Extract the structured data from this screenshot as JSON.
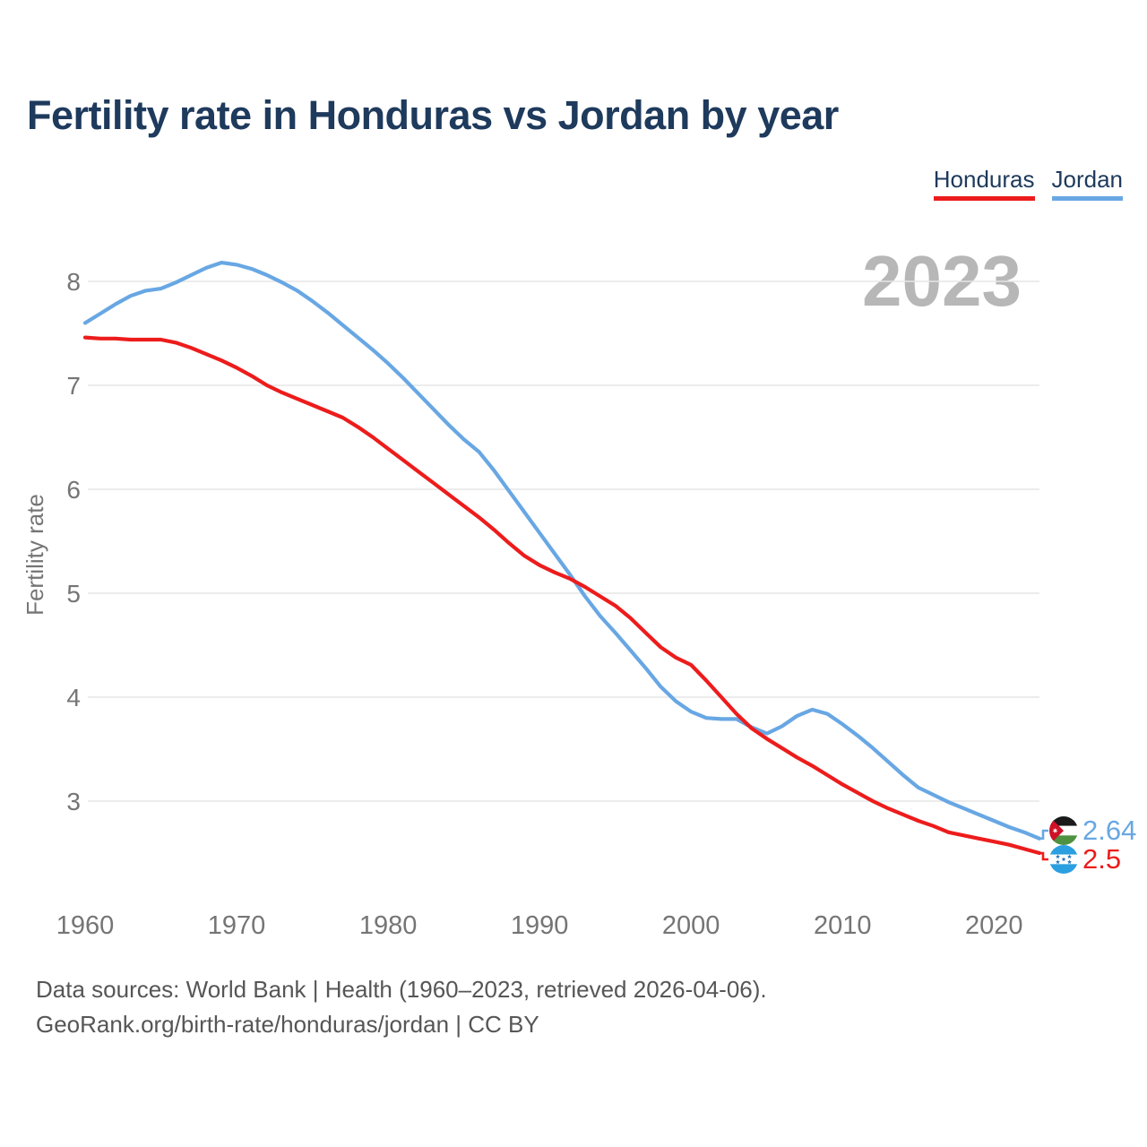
{
  "header": {
    "title": "Fertility rate in Honduras vs Jordan by year"
  },
  "legend": {
    "items": [
      {
        "label": "Honduras",
        "color": "#ed1c1c"
      },
      {
        "label": "Jordan",
        "color": "#68a7e3"
      }
    ]
  },
  "watermark": "2023",
  "chart_data": {
    "type": "line",
    "title": "Fertility rate in Honduras vs Jordan by year",
    "xlabel": "",
    "ylabel": "Fertility rate",
    "grid": "horizontal-only",
    "legend_position": "top-right",
    "xlim": [
      1960,
      2023
    ],
    "ylim": [
      2.4,
      8.45
    ],
    "x_ticks": [
      1960,
      1970,
      1980,
      1990,
      2000,
      2010,
      2020
    ],
    "y_ticks": [
      8,
      7,
      6,
      5,
      4,
      3
    ],
    "x": [
      1960,
      1961,
      1962,
      1963,
      1964,
      1965,
      1966,
      1967,
      1968,
      1969,
      1970,
      1971,
      1972,
      1973,
      1974,
      1975,
      1976,
      1977,
      1978,
      1979,
      1980,
      1981,
      1982,
      1983,
      1984,
      1985,
      1986,
      1987,
      1988,
      1989,
      1990,
      1991,
      1992,
      1993,
      1994,
      1995,
      1996,
      1997,
      1998,
      1999,
      2000,
      2001,
      2002,
      2003,
      2004,
      2005,
      2006,
      2007,
      2008,
      2009,
      2010,
      2011,
      2012,
      2013,
      2014,
      2015,
      2016,
      2017,
      2018,
      2019,
      2020,
      2021,
      2022,
      2023
    ],
    "series": [
      {
        "name": "Jordan",
        "color": "#68a7e3",
        "end_label": "2.64",
        "flag_icon": "jordan-flag-icon",
        "values": [
          7.6,
          7.69,
          7.78,
          7.86,
          7.91,
          7.93,
          7.99,
          8.06,
          8.13,
          8.18,
          8.16,
          8.12,
          8.06,
          7.99,
          7.91,
          7.81,
          7.7,
          7.58,
          7.46,
          7.34,
          7.21,
          7.07,
          6.92,
          6.77,
          6.62,
          6.48,
          6.36,
          6.18,
          5.98,
          5.78,
          5.58,
          5.38,
          5.18,
          4.97,
          4.78,
          4.62,
          4.45,
          4.28,
          4.1,
          3.96,
          3.86,
          3.8,
          3.79,
          3.79,
          3.71,
          3.65,
          3.72,
          3.82,
          3.88,
          3.84,
          3.74,
          3.63,
          3.51,
          3.38,
          3.25,
          3.13,
          3.06,
          2.99,
          2.93,
          2.87,
          2.81,
          2.75,
          2.7,
          2.64
        ]
      },
      {
        "name": "Honduras",
        "color": "#ed1c1c",
        "end_label": "2.5",
        "flag_icon": "honduras-flag-icon",
        "values": [
          7.46,
          7.45,
          7.45,
          7.44,
          7.44,
          7.44,
          7.41,
          7.36,
          7.3,
          7.24,
          7.17,
          7.09,
          7.0,
          6.93,
          6.87,
          6.81,
          6.75,
          6.69,
          6.6,
          6.5,
          6.39,
          6.28,
          6.17,
          6.06,
          5.95,
          5.84,
          5.73,
          5.61,
          5.48,
          5.36,
          5.27,
          5.2,
          5.14,
          5.06,
          4.97,
          4.88,
          4.76,
          4.62,
          4.48,
          4.38,
          4.31,
          4.16,
          4.0,
          3.84,
          3.7,
          3.6,
          3.51,
          3.42,
          3.34,
          3.25,
          3.16,
          3.08,
          3.0,
          2.93,
          2.87,
          2.81,
          2.76,
          2.7,
          2.67,
          2.64,
          2.61,
          2.58,
          2.54,
          2.5
        ]
      }
    ]
  },
  "footer": {
    "line1": "Data sources: World Bank | Health (1960–2023, retrieved 2026-04-06).",
    "line2": "GeoRank.org/birth-rate/honduras/jordan | CC BY"
  },
  "colors": {
    "axis_text": "#757575",
    "gridline": "#e6e6e6",
    "watermark": "#b7b7b7",
    "jordan_flag": {
      "black": "#1a1a1a",
      "white": "#ffffff",
      "green": "#4e9141",
      "red": "#ce1126"
    },
    "honduras_flag": {
      "band_blue": "#2b9fe0",
      "white": "#ffffff",
      "star_blue": "#2272b5"
    }
  }
}
